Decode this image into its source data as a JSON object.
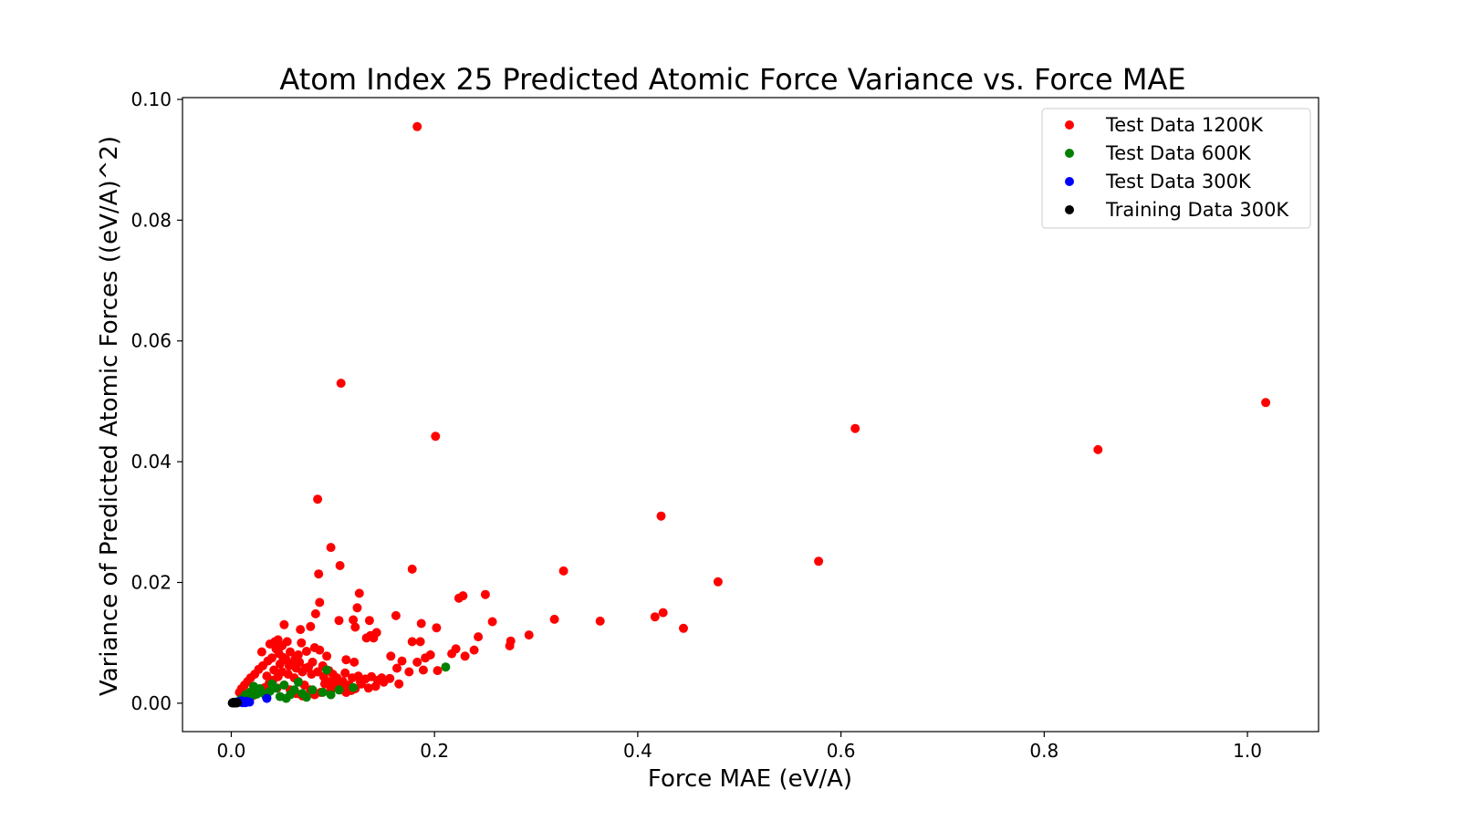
{
  "chart_data": {
    "type": "scatter",
    "title": "Atom Index 25 Predicted Atomic Force Variance vs. Force MAE",
    "xlabel": "Force MAE (eV/A)",
    "ylabel": "Variance of Predicted Atomic Forces ((eV/A)^2)",
    "xlim": [
      -0.048,
      1.07
    ],
    "ylim": [
      -0.0047,
      0.1003
    ],
    "xticks": [
      0.0,
      0.2,
      0.4,
      0.6,
      0.8,
      1.0
    ],
    "xtick_labels": [
      "0.0",
      "0.2",
      "0.4",
      "0.6",
      "0.8",
      "1.0"
    ],
    "yticks": [
      0.0,
      0.02,
      0.04,
      0.06,
      0.08,
      0.1
    ],
    "ytick_labels": [
      "0.00",
      "0.02",
      "0.04",
      "0.06",
      "0.08",
      "0.10"
    ],
    "grid": false,
    "legend_position": "top-right",
    "series": [
      {
        "name": "Test Data 1200K",
        "color": "#ff0000",
        "points": [
          [
            0.183,
            0.0955
          ],
          [
            0.108,
            0.053
          ],
          [
            0.201,
            0.0442
          ],
          [
            0.614,
            0.0455
          ],
          [
            1.018,
            0.0498
          ],
          [
            0.853,
            0.042
          ],
          [
            0.085,
            0.0338
          ],
          [
            0.423,
            0.031
          ],
          [
            0.098,
            0.0258
          ],
          [
            0.107,
            0.0228
          ],
          [
            0.178,
            0.0222
          ],
          [
            0.327,
            0.0219
          ],
          [
            0.578,
            0.0235
          ],
          [
            0.086,
            0.0214
          ],
          [
            0.479,
            0.0201
          ],
          [
            0.126,
            0.0182
          ],
          [
            0.25,
            0.018
          ],
          [
            0.228,
            0.0178
          ],
          [
            0.224,
            0.0174
          ],
          [
            0.087,
            0.0167
          ],
          [
            0.124,
            0.0158
          ],
          [
            0.083,
            0.0148
          ],
          [
            0.162,
            0.0145
          ],
          [
            0.425,
            0.015
          ],
          [
            0.417,
            0.0143
          ],
          [
            0.318,
            0.0139
          ],
          [
            0.363,
            0.0136
          ],
          [
            0.257,
            0.0135
          ],
          [
            0.106,
            0.0137
          ],
          [
            0.12,
            0.0138
          ],
          [
            0.136,
            0.0137
          ],
          [
            0.187,
            0.0132
          ],
          [
            0.202,
            0.0125
          ],
          [
            0.445,
            0.0124
          ],
          [
            0.052,
            0.013
          ],
          [
            0.068,
            0.0122
          ],
          [
            0.078,
            0.0127
          ],
          [
            0.122,
            0.0126
          ],
          [
            0.143,
            0.0117
          ],
          [
            0.137,
            0.0112
          ],
          [
            0.133,
            0.0108
          ],
          [
            0.14,
            0.0108
          ],
          [
            0.293,
            0.0113
          ],
          [
            0.275,
            0.0103
          ],
          [
            0.243,
            0.011
          ],
          [
            0.186,
            0.0102
          ],
          [
            0.178,
            0.0102
          ],
          [
            0.069,
            0.01
          ],
          [
            0.046,
            0.0105
          ],
          [
            0.055,
            0.0102
          ],
          [
            0.274,
            0.0095
          ],
          [
            0.221,
            0.009
          ],
          [
            0.239,
            0.0088
          ],
          [
            0.217,
            0.0082
          ],
          [
            0.23,
            0.0078
          ],
          [
            0.191,
            0.0075
          ],
          [
            0.168,
            0.007
          ],
          [
            0.157,
            0.0078
          ],
          [
            0.196,
            0.008
          ],
          [
            0.183,
            0.0068
          ],
          [
            0.163,
            0.0058
          ],
          [
            0.175,
            0.0052
          ],
          [
            0.189,
            0.0055
          ],
          [
            0.203,
            0.0054
          ],
          [
            0.121,
            0.0068
          ],
          [
            0.113,
            0.0072
          ],
          [
            0.094,
            0.0078
          ],
          [
            0.087,
            0.0088
          ],
          [
            0.082,
            0.0092
          ],
          [
            0.074,
            0.0086
          ],
          [
            0.066,
            0.008
          ],
          [
            0.058,
            0.0085
          ],
          [
            0.05,
            0.0095
          ],
          [
            0.044,
            0.009
          ],
          [
            0.04,
            0.0075
          ],
          [
            0.036,
            0.007
          ],
          [
            0.031,
            0.0062
          ],
          [
            0.027,
            0.0056
          ],
          [
            0.023,
            0.0048
          ],
          [
            0.019,
            0.0042
          ],
          [
            0.016,
            0.0036
          ],
          [
            0.013,
            0.003
          ],
          [
            0.01,
            0.0024
          ],
          [
            0.008,
            0.0018
          ],
          [
            0.035,
            0.0045
          ],
          [
            0.042,
            0.0055
          ],
          [
            0.048,
            0.0065
          ],
          [
            0.054,
            0.0072
          ],
          [
            0.06,
            0.0066
          ],
          [
            0.064,
            0.0058
          ],
          [
            0.07,
            0.0052
          ],
          [
            0.076,
            0.006
          ],
          [
            0.08,
            0.0068
          ],
          [
            0.09,
            0.0062
          ],
          [
            0.096,
            0.0054
          ],
          [
            0.1,
            0.0048
          ],
          [
            0.104,
            0.0042
          ],
          [
            0.11,
            0.0036
          ],
          [
            0.116,
            0.003
          ],
          [
            0.122,
            0.0024
          ],
          [
            0.128,
            0.0032
          ],
          [
            0.132,
            0.004
          ],
          [
            0.138,
            0.0044
          ],
          [
            0.144,
            0.0038
          ],
          [
            0.15,
            0.0035
          ],
          [
            0.156,
            0.0041
          ],
          [
            0.165,
            0.0032
          ],
          [
            0.142,
            0.0028
          ],
          [
            0.118,
            0.0021
          ],
          [
            0.108,
            0.0028
          ],
          [
            0.098,
            0.0022
          ],
          [
            0.088,
            0.0018
          ],
          [
            0.078,
            0.0022
          ],
          [
            0.072,
            0.003
          ],
          [
            0.066,
            0.0036
          ],
          [
            0.062,
            0.0042
          ],
          [
            0.056,
            0.0048
          ],
          [
            0.05,
            0.0052
          ],
          [
            0.046,
            0.0044
          ],
          [
            0.041,
            0.0038
          ],
          [
            0.037,
            0.0032
          ],
          [
            0.033,
            0.0026
          ],
          [
            0.029,
            0.002
          ],
          [
            0.025,
            0.0016
          ],
          [
            0.021,
            0.0012
          ],
          [
            0.017,
            0.001
          ],
          [
            0.045,
            0.0025
          ],
          [
            0.052,
            0.003
          ],
          [
            0.058,
            0.0022
          ],
          [
            0.064,
            0.0016
          ],
          [
            0.07,
            0.0012
          ],
          [
            0.082,
            0.0014
          ],
          [
            0.092,
            0.0032
          ],
          [
            0.102,
            0.0038
          ],
          [
            0.112,
            0.005
          ],
          [
            0.125,
            0.0045
          ],
          [
            0.135,
            0.0025
          ],
          [
            0.148,
            0.0042
          ],
          [
            0.03,
            0.0085
          ],
          [
            0.038,
            0.0098
          ],
          [
            0.043,
            0.0102
          ],
          [
            0.047,
            0.0082
          ],
          [
            0.051,
            0.0076
          ],
          [
            0.057,
            0.0062
          ],
          [
            0.063,
            0.0074
          ],
          [
            0.067,
            0.0068
          ],
          [
            0.073,
            0.0058
          ],
          [
            0.079,
            0.0048
          ],
          [
            0.085,
            0.0052
          ],
          [
            0.091,
            0.0044
          ],
          [
            0.095,
            0.0036
          ],
          [
            0.101,
            0.0028
          ],
          [
            0.107,
            0.0022
          ],
          [
            0.113,
            0.0018
          ],
          [
            0.119,
            0.0042
          ],
          [
            0.127,
            0.0036
          ]
        ]
      },
      {
        "name": "Test Data 600K",
        "color": "#008000",
        "points": [
          [
            0.211,
            0.006
          ],
          [
            0.094,
            0.0055
          ],
          [
            0.066,
            0.0035
          ],
          [
            0.052,
            0.003
          ],
          [
            0.044,
            0.0025
          ],
          [
            0.038,
            0.002
          ],
          [
            0.03,
            0.0018
          ],
          [
            0.025,
            0.0015
          ],
          [
            0.02,
            0.0012
          ],
          [
            0.016,
            0.001
          ],
          [
            0.012,
            0.0008
          ],
          [
            0.009,
            0.0006
          ],
          [
            0.058,
            0.0014
          ],
          [
            0.048,
            0.0011
          ],
          [
            0.035,
            0.0009
          ],
          [
            0.028,
            0.0024
          ],
          [
            0.022,
            0.0028
          ],
          [
            0.062,
            0.0022
          ],
          [
            0.07,
            0.0016
          ],
          [
            0.08,
            0.0022
          ],
          [
            0.09,
            0.0018
          ],
          [
            0.098,
            0.0014
          ],
          [
            0.106,
            0.0022
          ],
          [
            0.12,
            0.0026
          ],
          [
            0.04,
            0.0032
          ],
          [
            0.034,
            0.0012
          ],
          [
            0.018,
            0.0018
          ],
          [
            0.014,
            0.0014
          ],
          [
            0.054,
            0.0008
          ],
          [
            0.074,
            0.001
          ]
        ]
      },
      {
        "name": "Test Data 300K",
        "color": "#0000ff",
        "points": [
          [
            0.035,
            0.0008
          ],
          [
            0.015,
            0.0003
          ],
          [
            0.012,
            0.0002
          ],
          [
            0.01,
            0.0004
          ],
          [
            0.008,
            0.0002
          ],
          [
            0.006,
            0.0001
          ],
          [
            0.018,
            0.0002
          ],
          [
            0.014,
            0.0001
          ],
          [
            0.005,
            0.0002
          ],
          [
            0.011,
            0.0001
          ]
        ]
      },
      {
        "name": "Training Data 300K",
        "color": "#000000",
        "points": [
          [
            0.001,
            5e-05
          ],
          [
            0.002,
            0.0001
          ],
          [
            0.003,
            8e-05
          ],
          [
            0.004,
            0.00012
          ],
          [
            0.005,
            6e-05
          ],
          [
            0.006,
            0.0001
          ],
          [
            0.0025,
            0.00015
          ],
          [
            0.0035,
            4e-05
          ],
          [
            0.0015,
            0.0001
          ],
          [
            0.0045,
            9e-05
          ]
        ]
      }
    ]
  }
}
